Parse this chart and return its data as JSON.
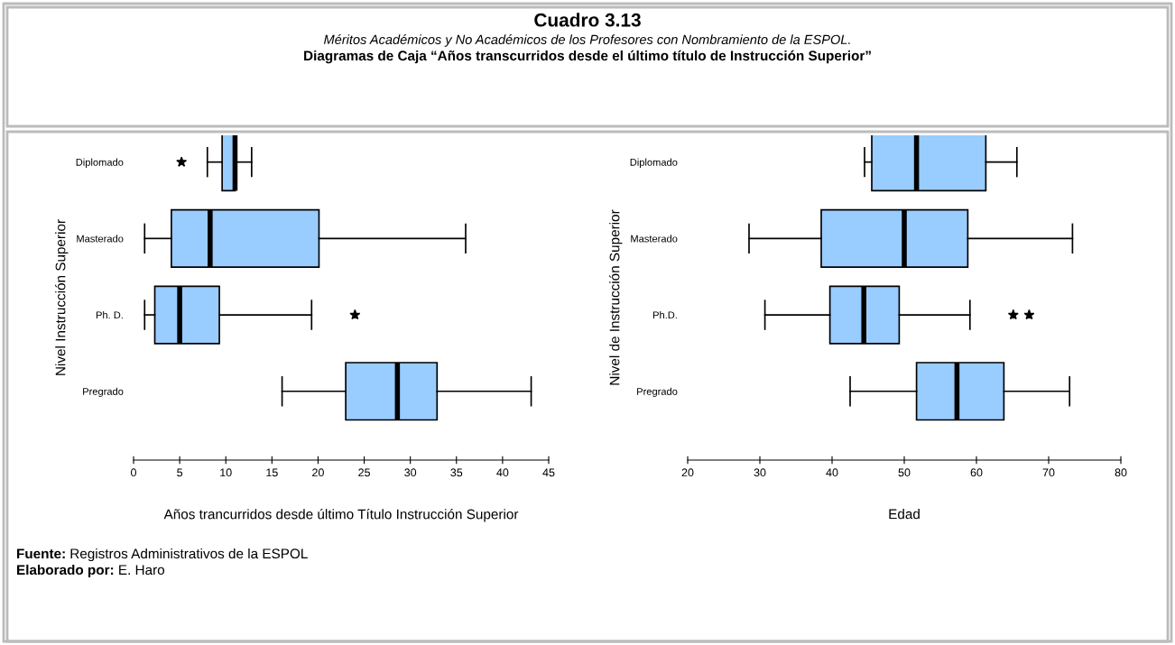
{
  "chart_data": [
    {
      "type": "box",
      "title": "Cuadro 3.13",
      "subtitle": "Méritos Académicos y No Académicos de los Profesores con Nombramiento de la ESPOL.",
      "annotations": [
        "Diagramas de Caja “Años transcurridos desde el último título de Instrucción Superior”",
        "Fuente: Registros Administrativos de la ESPOL",
        "Elaborado por: E. Haro"
      ],
      "orientation": "horizontal",
      "categories": [
        "Diplomado",
        "Masterado",
        "Ph. D.",
        "Pregrado"
      ],
      "color": "#99ccff",
      "xlabel": "Años trancurridos desde último Título Instrucción Superior",
      "ylabel": "Nivel Instrucción Superior",
      "xlim": [
        0,
        45
      ],
      "xticks": [
        0,
        5,
        10,
        15,
        20,
        25,
        30,
        35,
        40,
        45
      ],
      "marker": "star",
      "grid": false,
      "boxes": [
        {
          "low": 8.0,
          "q1": 9.6,
          "median": 11.0,
          "q3": 11.0,
          "high": 12.8,
          "outliers": [
            5.2
          ]
        },
        {
          "low": 1.2,
          "q1": 4.1,
          "median": 8.3,
          "q3": 20.1,
          "high": 36.0
        },
        {
          "low": 1.2,
          "q1": 2.3,
          "median": 5.0,
          "q3": 9.3,
          "high": 19.3,
          "outliers": [
            24.0
          ]
        },
        {
          "low": 16.1,
          "q1": 23.0,
          "median": 28.6,
          "q3": 32.9,
          "high": 43.1
        }
      ]
    },
    {
      "type": "box",
      "orientation": "horizontal",
      "categories": [
        "Diplomado",
        "Masterado",
        "Ph.D.",
        "Pregrado"
      ],
      "color": "#99ccff",
      "xlabel": "Edad",
      "ylabel": "Nivel de Instrucción Superior",
      "xlim": [
        20,
        80
      ],
      "xticks": [
        20,
        30,
        40,
        50,
        60,
        70,
        80
      ],
      "marker": "star",
      "grid": false,
      "boxes": [
        {
          "low": 44.5,
          "q1": 45.5,
          "median": 51.7,
          "q3": 61.3,
          "high": 65.6
        },
        {
          "low": 28.5,
          "q1": 38.5,
          "median": 50.0,
          "q3": 58.8,
          "high": 73.3
        },
        {
          "low": 30.7,
          "q1": 39.7,
          "median": 44.4,
          "q3": 49.3,
          "high": 59.1,
          "outliers": [
            65.1,
            67.3
          ]
        },
        {
          "low": 42.5,
          "q1": 51.7,
          "median": 57.3,
          "q3": 63.8,
          "high": 72.9
        }
      ]
    }
  ]
}
